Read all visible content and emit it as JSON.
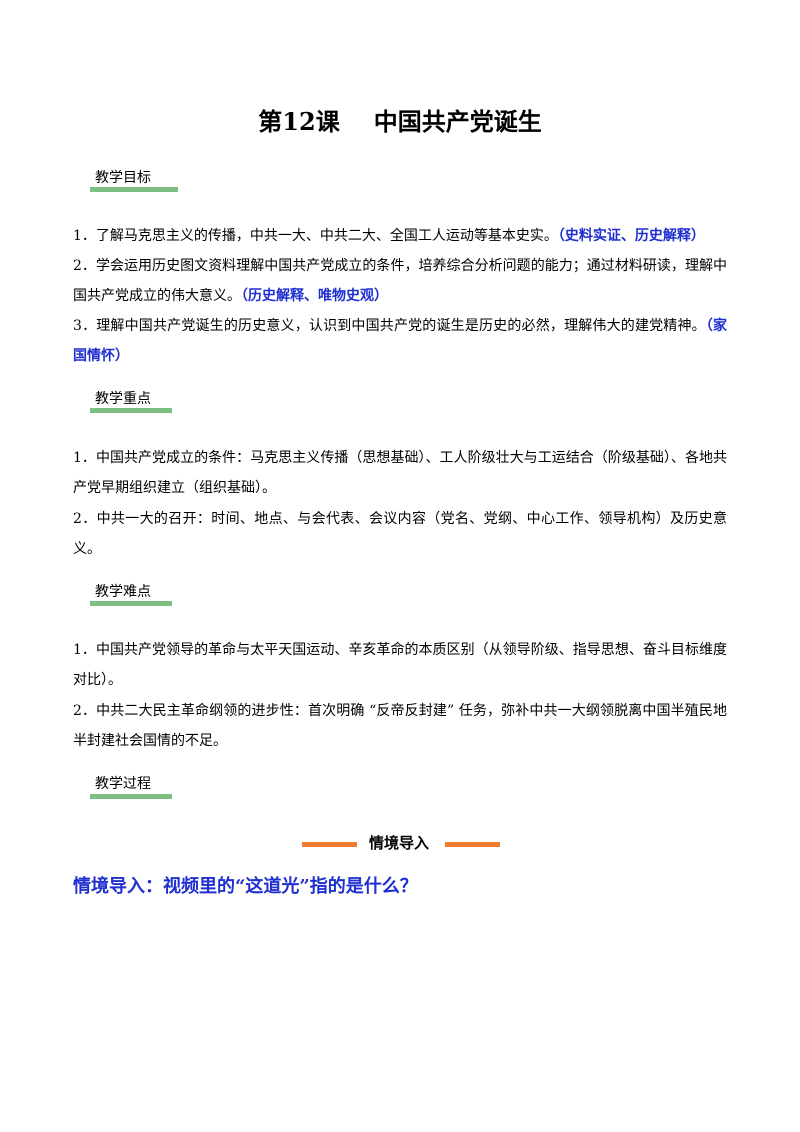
{
  "header": {
    "lesson": "第12课",
    "title": "中国共产党诞生"
  },
  "sections": [
    {
      "heading": "教学目标",
      "items": [
        {
          "text": "1．了解马克思主义的传播，中共一大、中共二大、全国工人运动等基本史实。",
          "tag": "（史料实证、历史解释）"
        },
        {
          "text": "2．学会运用历史图文资料理解中国共产党成立的条件，培养综合分析问题的能力；通过材料研读，理解中国共产党成立的伟大意义。",
          "tag": "（历史解释、唯物史观）"
        },
        {
          "text": "3．理解中国共产党诞生的历史意义，认识到中国共产党的诞生是历史的必然，理解伟大的建党精神。",
          "tag": "（家国情怀）"
        }
      ]
    },
    {
      "heading": "教学重点",
      "items": [
        {
          "text": "1．中国共产党成立的条件：马克思主义传播（思想基础）、工人阶级壮大与工运结合（阶级基础）、各地共产党早期组织建立（组织基础）。"
        },
        {
          "text": "2．中共一大的召开：时间、地点、与会代表、会议内容（党名、党纲、中心工作、领导机构）及历史意义。"
        }
      ]
    },
    {
      "heading": "教学难点",
      "items": [
        {
          "text": "1．中国共产党领导的革命与太平天国运动、辛亥革命的本质区别（从领导阶级、指导思想、奋斗目标维度对比）。"
        },
        {
          "text": "2．中共二大民主革命纲领的进步性：首次明确 “反帝反封建” 任务，弥补中共一大纲领脱离中国半殖民地半封建社会国情的不足。"
        }
      ]
    },
    {
      "heading": "教学过程",
      "items": []
    }
  ],
  "banner": "情境导入",
  "question": "情境导入：视频里的“这道光”指的是什么？"
}
